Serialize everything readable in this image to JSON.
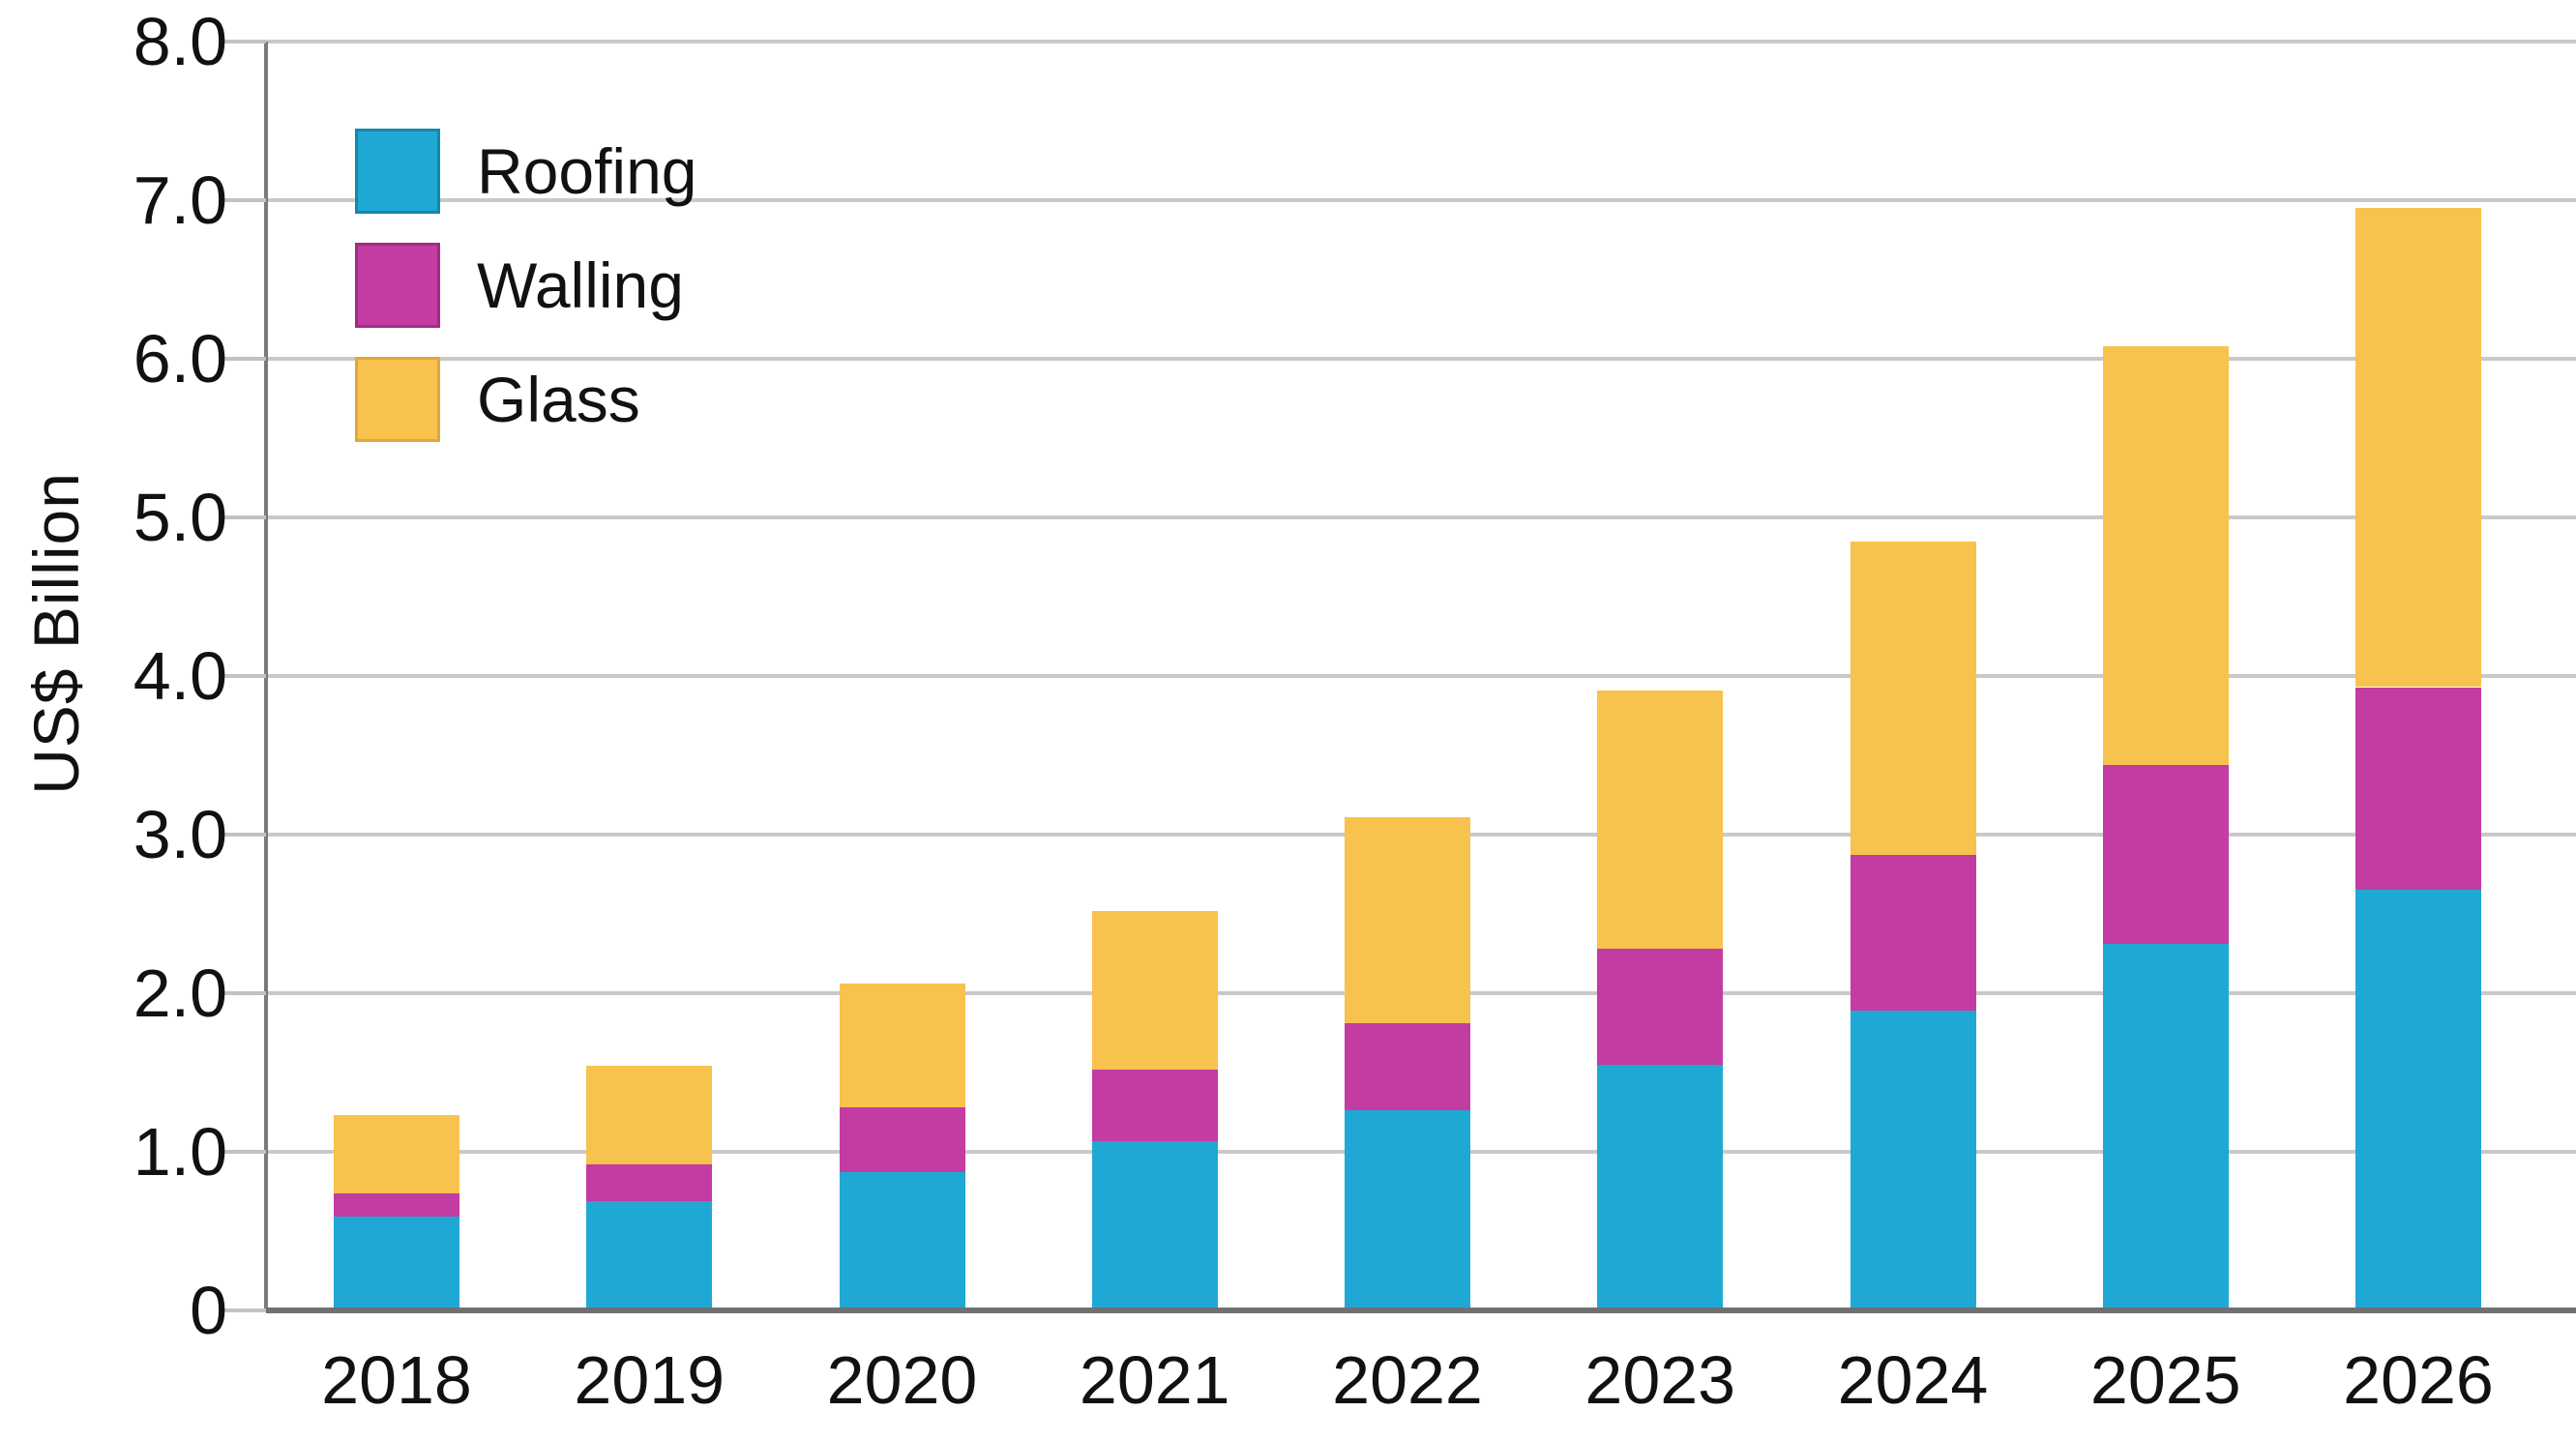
{
  "chart_data": {
    "type": "bar",
    "stacked": true,
    "title": "",
    "xlabel": "",
    "ylabel": "US$ Billion",
    "categories": [
      "2018",
      "2019",
      "2020",
      "2021",
      "2022",
      "2023",
      "2024",
      "2025",
      "2026"
    ],
    "series": [
      {
        "name": "Roofing",
        "color": "#20A8D4",
        "edge_color": "#1587AC",
        "values": [
          0.59,
          0.69,
          0.87,
          1.07,
          1.26,
          1.55,
          1.89,
          2.31,
          2.65
        ]
      },
      {
        "name": "Walling",
        "color": "#C33CA2",
        "edge_color": "#9C2F82",
        "values": [
          0.15,
          0.23,
          0.41,
          0.45,
          0.55,
          0.73,
          0.98,
          1.13,
          1.28
        ]
      },
      {
        "name": "Glass",
        "color": "#F8C24E",
        "edge_color": "#DFA83B",
        "values": [
          0.49,
          0.62,
          0.78,
          1.0,
          1.3,
          1.63,
          1.98,
          2.64,
          3.02
        ]
      }
    ],
    "stack_totals": [
      1.23,
      1.54,
      2.06,
      2.52,
      3.11,
      3.91,
      4.85,
      6.08,
      6.95
    ],
    "ylim": [
      0,
      8
    ],
    "ytick_step": 1.0,
    "ytick_labels": [
      "0",
      "1.0",
      "2.0",
      "3.0",
      "4.0",
      "5.0",
      "6.0",
      "7.0",
      "8.0"
    ],
    "grid": true,
    "legend_position": "top-left"
  },
  "colors": {
    "background": "#ffffff",
    "gridline": "#c9c9c9",
    "axis_line": "#7a7a7a",
    "baseline": "#707070",
    "text": "#111111"
  }
}
